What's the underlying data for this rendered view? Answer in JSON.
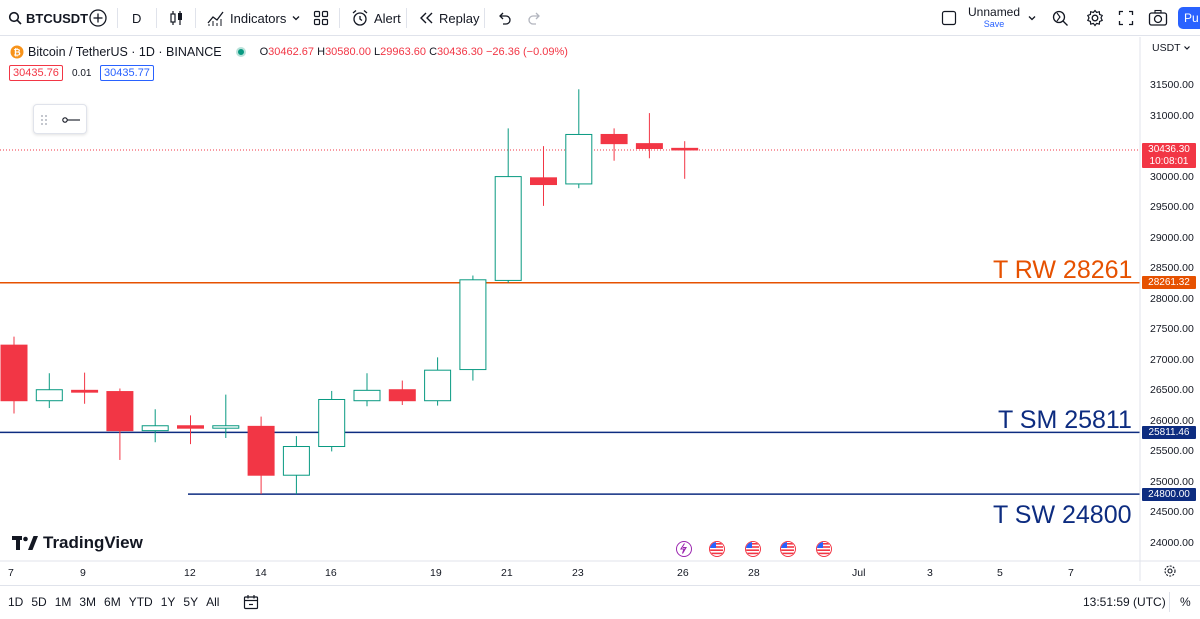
{
  "toolbar": {
    "symbol": "BTCUSDT",
    "interval": "D",
    "indicators": "Indicators",
    "alert": "Alert",
    "replay": "Replay",
    "layout_name": "Unnamed",
    "layout_save": "Save",
    "publish": "Pu"
  },
  "legend": {
    "title": "Bitcoin / TetherUS · 1D · BINANCE",
    "o_label": "O",
    "o": "30462.67",
    "h_label": "H",
    "h": "30580.00",
    "l_label": "L",
    "l": "29963.60",
    "c_label": "C",
    "c": "30436.30",
    "change": "−26.36 (−0.09%)",
    "bid": "30435.76",
    "spread": "0.01",
    "ask": "30435.77"
  },
  "currency": "USDT",
  "price_scale": [
    "31500.00",
    "31000.00",
    "30000.00",
    "29500.00",
    "29000.00",
    "28500.00",
    "28000.00",
    "27500.00",
    "27000.00",
    "26500.00",
    "26000.00",
    "25500.00",
    "25000.00",
    "24500.00",
    "24000.00"
  ],
  "current_price": {
    "value": "30436.30",
    "countdown": "10:08:01",
    "color": "#f23645"
  },
  "hlines": [
    {
      "text": "T RW 28261",
      "label": "28261.32",
      "price": 28261.32,
      "color": "#e65100"
    },
    {
      "text": "T SM 25811",
      "label": "25811.46",
      "price": 25811.46,
      "color": "#0d2c80"
    },
    {
      "text": "T SW 24800",
      "label": "24800.00",
      "price": 24800.0,
      "color": "#0d2c80"
    }
  ],
  "x_axis": [
    "7",
    "9",
    "12",
    "14",
    "16",
    "19",
    "21",
    "23",
    "26",
    "28",
    "Jul",
    "3",
    "5",
    "7"
  ],
  "chart_data": {
    "type": "candlestick",
    "up_color": "#089981",
    "down_color": "#f23645",
    "candles": [
      {
        "o": 27240,
        "h": 27380,
        "l": 26120,
        "c": 26330
      },
      {
        "o": 26330,
        "h": 26780,
        "l": 26210,
        "c": 26510
      },
      {
        "o": 26500,
        "h": 26790,
        "l": 26280,
        "c": 26470
      },
      {
        "o": 26480,
        "h": 26530,
        "l": 25360,
        "c": 25840
      },
      {
        "o": 25840,
        "h": 26190,
        "l": 25650,
        "c": 25920
      },
      {
        "o": 25920,
        "h": 26090,
        "l": 25620,
        "c": 25880
      },
      {
        "o": 25880,
        "h": 26430,
        "l": 25720,
        "c": 25920
      },
      {
        "o": 25910,
        "h": 26070,
        "l": 24800,
        "c": 25110
      },
      {
        "o": 25110,
        "h": 25750,
        "l": 24800,
        "c": 25580
      },
      {
        "o": 25580,
        "h": 26490,
        "l": 25500,
        "c": 26350
      },
      {
        "o": 26330,
        "h": 26780,
        "l": 26240,
        "c": 26500
      },
      {
        "o": 26510,
        "h": 26660,
        "l": 26260,
        "c": 26330
      },
      {
        "o": 26330,
        "h": 27040,
        "l": 26250,
        "c": 26830
      },
      {
        "o": 26840,
        "h": 28380,
        "l": 26660,
        "c": 28310
      },
      {
        "o": 28300,
        "h": 30790,
        "l": 28260,
        "c": 30000
      },
      {
        "o": 29980,
        "h": 30500,
        "l": 29520,
        "c": 29870
      },
      {
        "o": 29880,
        "h": 31430,
        "l": 29810,
        "c": 30690
      },
      {
        "o": 30690,
        "h": 30790,
        "l": 30260,
        "c": 30540
      },
      {
        "o": 30540,
        "h": 31040,
        "l": 30300,
        "c": 30460
      },
      {
        "o": 30462.67,
        "h": 30580,
        "l": 29963.6,
        "c": 30436.3
      }
    ]
  },
  "events": [
    "flash-event-icon",
    "us-flag-icon",
    "us-flag-icon",
    "us-flag-icon",
    "us-flag-icon"
  ],
  "watermark": "TradingView",
  "bottom": {
    "ranges": [
      "1D",
      "5D",
      "1M",
      "3M",
      "6M",
      "YTD",
      "1Y",
      "5Y",
      "All"
    ],
    "time": "13:51:59 (UTC)",
    "percent": "%"
  }
}
